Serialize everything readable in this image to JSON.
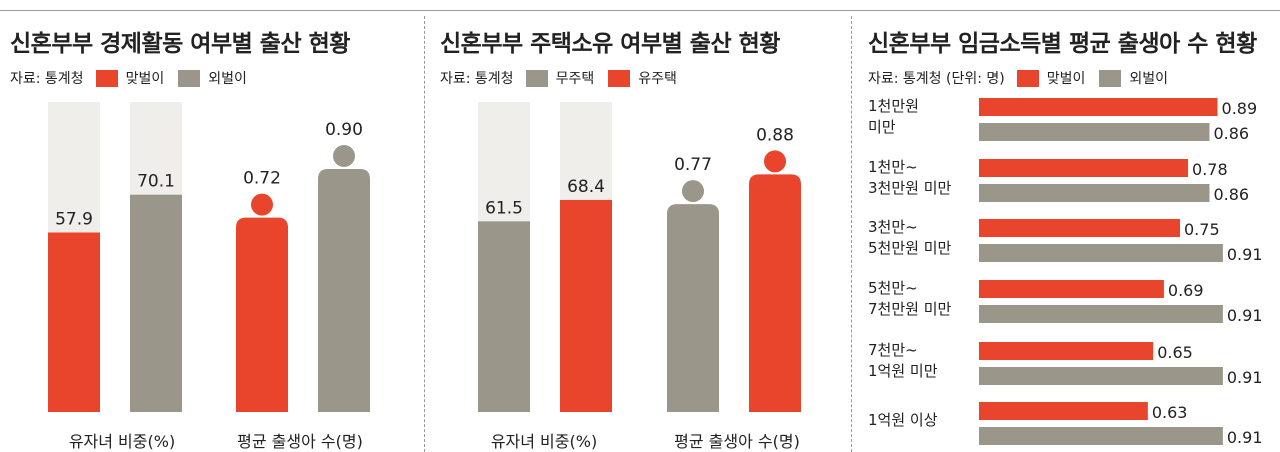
{
  "colors": {
    "red": "#e8452c",
    "gray": "#9a968a",
    "light": "#efeeea"
  },
  "chart_data": [
    {
      "type": "bar",
      "title": "신혼부부 경제활동 여부별 출산 현황",
      "source": "자료: 통계청",
      "legend": [
        {
          "name": "맞벌이",
          "color": "#e8452c"
        },
        {
          "name": "외벌이",
          "color": "#9a968a"
        }
      ],
      "groups": [
        {
          "label": "유자녀 비중(%)",
          "unit": "percent",
          "values": [
            {
              "series": "맞벌이",
              "value": 57.9,
              "label": "57.9"
            },
            {
              "series": "외벌이",
              "value": 70.1,
              "label": "70.1"
            }
          ]
        },
        {
          "label": "평균 출생아 수(명)",
          "unit": "persons",
          "values": [
            {
              "series": "맞벌이",
              "value": 0.72,
              "label": "0.72"
            },
            {
              "series": "외벌이",
              "value": 0.9,
              "label": "0.90"
            }
          ]
        }
      ]
    },
    {
      "type": "bar",
      "title": "신혼부부 주택소유 여부별 출산 현황",
      "source": "자료: 통계청",
      "legend": [
        {
          "name": "무주택",
          "color": "#9a968a"
        },
        {
          "name": "유주택",
          "color": "#e8452c"
        }
      ],
      "groups": [
        {
          "label": "유자녀 비중(%)",
          "unit": "percent",
          "values": [
            {
              "series": "무주택",
              "value": 61.5,
              "label": "61.5"
            },
            {
              "series": "유주택",
              "value": 68.4,
              "label": "68.4"
            }
          ]
        },
        {
          "label": "평균 출생아 수(명)",
          "unit": "persons",
          "values": [
            {
              "series": "무주택",
              "value": 0.77,
              "label": "0.77"
            },
            {
              "series": "유주택",
              "value": 0.88,
              "label": "0.88"
            }
          ]
        }
      ]
    },
    {
      "type": "bar",
      "orientation": "horizontal",
      "title": "신혼부부 임금소득별 평균 출생아 수 현황",
      "source": "자료: 통계청 (단위: 명)",
      "legend": [
        {
          "name": "맞벌이",
          "color": "#e8452c"
        },
        {
          "name": "외벌이",
          "color": "#9a968a"
        }
      ],
      "categories": [
        {
          "lines": [
            "1천만원",
            "미만"
          ]
        },
        {
          "lines": [
            "1천만~",
            "3천만원 미만"
          ]
        },
        {
          "lines": [
            "3천만~",
            "5천만원 미만"
          ]
        },
        {
          "lines": [
            "5천만~",
            "7천만원 미만"
          ]
        },
        {
          "lines": [
            "7천만~",
            "1억원 미만"
          ]
        },
        {
          "lines": [
            "1억원 이상"
          ]
        }
      ],
      "series": [
        {
          "name": "맞벌이",
          "values": [
            0.89,
            0.78,
            0.75,
            0.69,
            0.65,
            0.63
          ],
          "labels": [
            "0.89",
            "0.78",
            "0.75",
            "0.69",
            "0.65",
            "0.63"
          ]
        },
        {
          "name": "외벌이",
          "values": [
            0.86,
            0.86,
            0.91,
            0.91,
            0.91,
            0.91
          ],
          "labels": [
            "0.86",
            "0.86",
            "0.91",
            "0.91",
            "0.91",
            "0.91"
          ]
        }
      ]
    }
  ]
}
